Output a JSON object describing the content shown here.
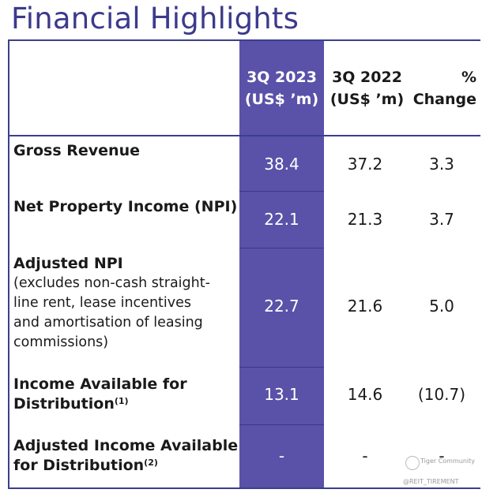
{
  "title": "Financial Highlights",
  "columns": {
    "current": {
      "line1": "3Q 2023",
      "line2": "(US$ ’m)"
    },
    "prior": {
      "line1": "3Q 2022",
      "line2": "(US$ ’m)"
    },
    "change": {
      "line1": "%",
      "line2": "Change"
    }
  },
  "rows": [
    {
      "label": "Gross Revenue",
      "current": "38.4",
      "prior": "37.2",
      "change": "3.3"
    },
    {
      "label": "Net Property Income (NPI)",
      "current": "22.1",
      "prior": "21.3",
      "change": "3.7"
    },
    {
      "label": "Adjusted NPI",
      "sub": [
        "(excludes non-cash straight-",
        "line rent, lease incentives",
        "and amortisation of leasing",
        "commissions)"
      ],
      "current": "22.7",
      "prior": "21.6",
      "change": "5.0"
    },
    {
      "label_line1": "Income Available for",
      "label_line2": "Distribution",
      "footnote": "(1)",
      "current": "13.1",
      "prior": "14.6",
      "change": "(10.7)"
    },
    {
      "label_line1": "Adjusted Income Available",
      "label_line2": "for Distribution",
      "footnote": "(2)",
      "current": "-",
      "prior": "-",
      "change": "-"
    }
  ],
  "watermark": {
    "line1": "Tiger Community",
    "line2": "@REIT_TIREMENT"
  },
  "colors": {
    "title": "#3c3a8c",
    "highlight_column": "#5a52a8",
    "rule": "#3b3f8f"
  }
}
